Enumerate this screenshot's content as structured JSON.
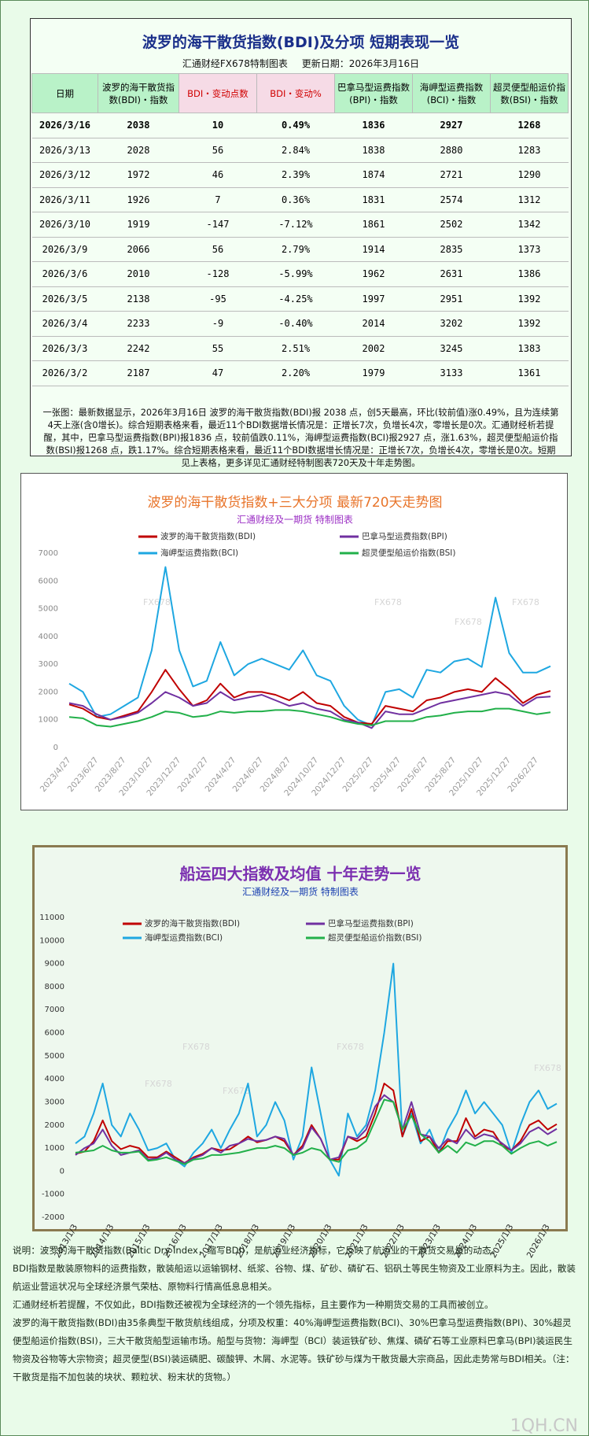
{
  "header": {
    "title": "波罗的海干散货指数(BDI)及分项  短期表现一览",
    "source": "汇通财经FX678特制图表",
    "date": "更新日期：2026年3月16日"
  },
  "table": {
    "columns": [
      "日期",
      "波罗的海干散货指数(BDI)・指数",
      "BDI・变动点数",
      "BDI・变动%",
      "巴拿马型运费指数(BPI)・指数",
      "海岬型运费指数(BCI)・指数",
      "超灵便型船运价指数(BSI)・指数"
    ],
    "rows": [
      [
        "2026/3/16",
        "2038",
        "10",
        "0.49%",
        "1836",
        "2927",
        "1268"
      ],
      [
        "2026/3/13",
        "2028",
        "56",
        "2.84%",
        "1838",
        "2880",
        "1283"
      ],
      [
        "2026/3/12",
        "1972",
        "46",
        "2.39%",
        "1874",
        "2721",
        "1290"
      ],
      [
        "2026/3/11",
        "1926",
        "7",
        "0.36%",
        "1831",
        "2574",
        "1312"
      ],
      [
        "2026/3/10",
        "1919",
        "-147",
        "-7.12%",
        "1861",
        "2502",
        "1342"
      ],
      [
        "2026/3/9",
        "2066",
        "56",
        "2.79%",
        "1914",
        "2835",
        "1373"
      ],
      [
        "2026/3/6",
        "2010",
        "-128",
        "-5.99%",
        "1962",
        "2631",
        "1386"
      ],
      [
        "2026/3/5",
        "2138",
        "-95",
        "-4.25%",
        "1997",
        "2951",
        "1392"
      ],
      [
        "2026/3/4",
        "2233",
        "-9",
        "-0.40%",
        "2014",
        "3202",
        "1392"
      ],
      [
        "2026/3/3",
        "2242",
        "55",
        "2.51%",
        "2002",
        "3245",
        "1383"
      ],
      [
        "2026/3/2",
        "2187",
        "47",
        "2.20%",
        "1979",
        "3133",
        "1361"
      ]
    ]
  },
  "summary": "一张图：最新数据显示，2026年3月16日 波罗的海干散货指数(BDI)报 2038 点，创5天最高，环比(较前值)涨0.49%，且为连续第4天上涨(含0增长)。综合短期表格来看，最近11个BDI数据增长情况是：正增长7次，负增长4次，零增长是0次。汇通财经析若提醒，其中，巴拿马型运费指数(BPI)报1836 点，较前值跌0.11%，海岬型运费指数(BCI)报2927 点，涨1.63%，超灵便型船运价指数(BSI)报1268 点，跌1.17%。综合短期表格来看，最近11个BDI数据增长情况是：正增长7次，负增长4次，零增长是0次。短期见上表格，更多详见汇通财经特制图表720天及十年走势图。",
  "chart_data": [
    {
      "type": "line",
      "title": "波罗的海干散货指数+三大分项  最新720天走势图",
      "subtitle": "汇通财经及一期货 特制图表",
      "watermark": "FX678",
      "categories": [
        "2023/4/27",
        null,
        "2023/6/27",
        null,
        "2023/8/27",
        null,
        "2023/10/27",
        null,
        "2023/12/27",
        null,
        "2024/2/27",
        null,
        "2024/4/27",
        null,
        "2024/6/27",
        null,
        "2024/8/27",
        null,
        "2024/10/27",
        null,
        "2024/12/27",
        null,
        "2025/2/27",
        null,
        "2025/4/27",
        null,
        "2025/6/27",
        null,
        "2025/8/27",
        null,
        "2025/10/27",
        null,
        "2025/12/27",
        null,
        "2026/2/27",
        null
      ],
      "ylim": [
        0,
        7000
      ],
      "yticks": [
        0,
        1000,
        2000,
        3000,
        4000,
        5000,
        6000,
        7000
      ],
      "grid": false,
      "series": [
        {
          "name": "波罗的海干散货指数(BDI)",
          "color": "#c00000",
          "values": [
            1550,
            1400,
            1100,
            1000,
            1150,
            1300,
            2000,
            2800,
            2100,
            1500,
            1700,
            2300,
            1800,
            2000,
            2000,
            1900,
            1700,
            2000,
            1600,
            1500,
            1100,
            900,
            850,
            1500,
            1400,
            1300,
            1700,
            1800,
            2000,
            2100,
            2000,
            2500,
            2100,
            1600,
            1900,
            2038
          ]
        },
        {
          "name": "巴拿马型运费指数(BPI)",
          "color": "#7030a0",
          "values": [
            1600,
            1500,
            1200,
            1000,
            1100,
            1250,
            1600,
            2000,
            1800,
            1500,
            1600,
            2000,
            1700,
            1800,
            1900,
            1700,
            1500,
            1600,
            1400,
            1300,
            1000,
            900,
            700,
            1300,
            1200,
            1200,
            1400,
            1600,
            1700,
            1800,
            1900,
            2000,
            1900,
            1500,
            1800,
            1836
          ]
        },
        {
          "name": "海岬型运费指数(BCI)",
          "color": "#1ea7e1",
          "values": [
            2300,
            2000,
            1100,
            1200,
            1500,
            1800,
            3500,
            6500,
            3500,
            2200,
            2400,
            3800,
            2600,
            3000,
            3200,
            3000,
            2800,
            3500,
            2600,
            2400,
            1500,
            1000,
            800,
            2000,
            2100,
            1800,
            2800,
            2700,
            3100,
            3200,
            2900,
            5400,
            3400,
            2700,
            2700,
            2927
          ]
        },
        {
          "name": "超灵便型船运价指数(BSI)",
          "color": "#22b04a",
          "values": [
            1100,
            1050,
            800,
            750,
            850,
            950,
            1100,
            1300,
            1250,
            1100,
            1150,
            1300,
            1250,
            1300,
            1300,
            1350,
            1350,
            1300,
            1200,
            1100,
            950,
            850,
            800,
            950,
            950,
            950,
            1100,
            1150,
            1250,
            1300,
            1300,
            1400,
            1400,
            1300,
            1200,
            1268
          ]
        }
      ]
    },
    {
      "type": "line",
      "title": "船运四大指数及均值 十年走势一览",
      "subtitle": "汇通财经及一期货 特制图表",
      "watermark": "FX678",
      "categories": [
        "2013/1/3",
        null,
        null,
        null,
        "2014/1/3",
        null,
        null,
        null,
        "2015/1/3",
        null,
        null,
        null,
        "2016/1/3",
        null,
        null,
        null,
        "2017/1/3",
        null,
        null,
        null,
        "2018/1/3",
        null,
        null,
        null,
        "2019/1/3",
        null,
        null,
        null,
        "2020/1/3",
        null,
        null,
        null,
        "2021/1/3",
        null,
        null,
        null,
        "2022/1/3",
        null,
        null,
        null,
        "2023/1/3",
        null,
        null,
        null,
        "2024/1/3",
        null,
        null,
        null,
        "2025/1/3",
        null,
        null,
        null,
        "2026/1/3",
        null
      ],
      "ylim": [
        -2000,
        11000
      ],
      "yticks": [
        -2000,
        -1000,
        0,
        1000,
        2000,
        3000,
        4000,
        5000,
        6000,
        7000,
        8000,
        9000,
        10000,
        11000
      ],
      "grid": false,
      "series": [
        {
          "name": "波罗的海干散货指数(BDI)",
          "color": "#c00000",
          "values": [
            750,
            850,
            1300,
            2200,
            1300,
            950,
            1100,
            1000,
            600,
            600,
            850,
            600,
            350,
            600,
            750,
            1000,
            900,
            950,
            1200,
            1500,
            1250,
            1350,
            1500,
            1300,
            700,
            1100,
            2000,
            1400,
            500,
            500,
            1500,
            1300,
            1500,
            2500,
            3800,
            3500,
            1500,
            2700,
            1300,
            1500,
            800,
            1300,
            1300,
            2300,
            1500,
            1800,
            1700,
            1100,
            900,
            1300,
            2000,
            2200,
            1800,
            2038
          ]
        },
        {
          "name": "巴拿马型运费指数(BPI)",
          "color": "#7030a0",
          "values": [
            700,
            1000,
            1200,
            1800,
            1100,
            700,
            800,
            900,
            500,
            550,
            800,
            500,
            350,
            550,
            700,
            1000,
            800,
            1100,
            1200,
            1400,
            1300,
            1350,
            1500,
            1400,
            700,
            1000,
            1900,
            1400,
            500,
            600,
            1500,
            1400,
            1800,
            2800,
            3300,
            3000,
            1800,
            3000,
            1600,
            1500,
            1000,
            1400,
            1200,
            1800,
            1400,
            1600,
            1500,
            1200,
            900,
            1200,
            1700,
            1900,
            1600,
            1836
          ]
        },
        {
          "name": "海岬型运费指数(BCI)",
          "color": "#1ea7e1",
          "values": [
            1200,
            1500,
            2500,
            3800,
            2000,
            1500,
            2500,
            1800,
            900,
            1000,
            1200,
            500,
            200,
            800,
            1200,
            1800,
            1000,
            1800,
            2500,
            3800,
            1500,
            2000,
            3000,
            2200,
            500,
            1500,
            4500,
            2500,
            500,
            -200,
            2500,
            1500,
            2000,
            3500,
            6000,
            9000,
            1500,
            2500,
            1200,
            1800,
            800,
            1800,
            2500,
            3500,
            2500,
            3000,
            2500,
            2000,
            800,
            2000,
            3000,
            3500,
            2700,
            2927
          ]
        },
        {
          "name": "超灵便型船运价指数(BSI)",
          "color": "#22b04a",
          "values": [
            800,
            850,
            900,
            1100,
            900,
            800,
            800,
            850,
            450,
            500,
            600,
            450,
            300,
            500,
            550,
            700,
            700,
            750,
            800,
            900,
            1000,
            1000,
            1100,
            1000,
            700,
            800,
            1000,
            900,
            500,
            400,
            900,
            1000,
            1300,
            2200,
            3100,
            3000,
            1800,
            2400,
            1600,
            1300,
            800,
            1100,
            800,
            1250,
            1100,
            1300,
            1300,
            1100,
            750,
            1000,
            1200,
            1300,
            1100,
            1268
          ]
        }
      ]
    }
  ],
  "notes": [
    "说明：波罗的海干散货指数(Baltic Dry Index，缩写BDI)，是航运业经济指标，它反映了航运业的干散货交易量的动态。",
    "BDI指数是散装原物料的运费指数，散装船运以运输钢材、纸浆、谷物、煤、矿砂、磷矿石、铝矾土等民生物资及工业原料为主。因此，散装航运业营运状况与全球经济景气荣枯、原物料行情高低息息相关。",
    "汇通财经析若提醒，不仅如此，BDI指数还被视为全球经济的一个领先指标，且主要作为一种期货交易的工具而被创立。",
    "波罗的海干散货指数(BDI)由35条典型干散货航线组成，分项及权重：40%海岬型运费指数(BCI)、30%巴拿马型运费指数(BPI)、30%超灵便型船运价指数(BSI)，三大干散货船型运输市场。船型与货物：海岬型（BCI）装运铁矿砂、焦煤、磷矿石等工业原料巴拿马(BPI)装运民生物资及谷物等大宗物资；超灵便型(BSI)装运磷肥、碳酸钾、木屑、水泥等。铁矿砂与煤为干散货最大宗商品，因此走势常与BDI相关。（注：干散货是指不加包装的块状、颗粒状、粉末状的货物。）"
  ],
  "watermark": "1QH.CN"
}
